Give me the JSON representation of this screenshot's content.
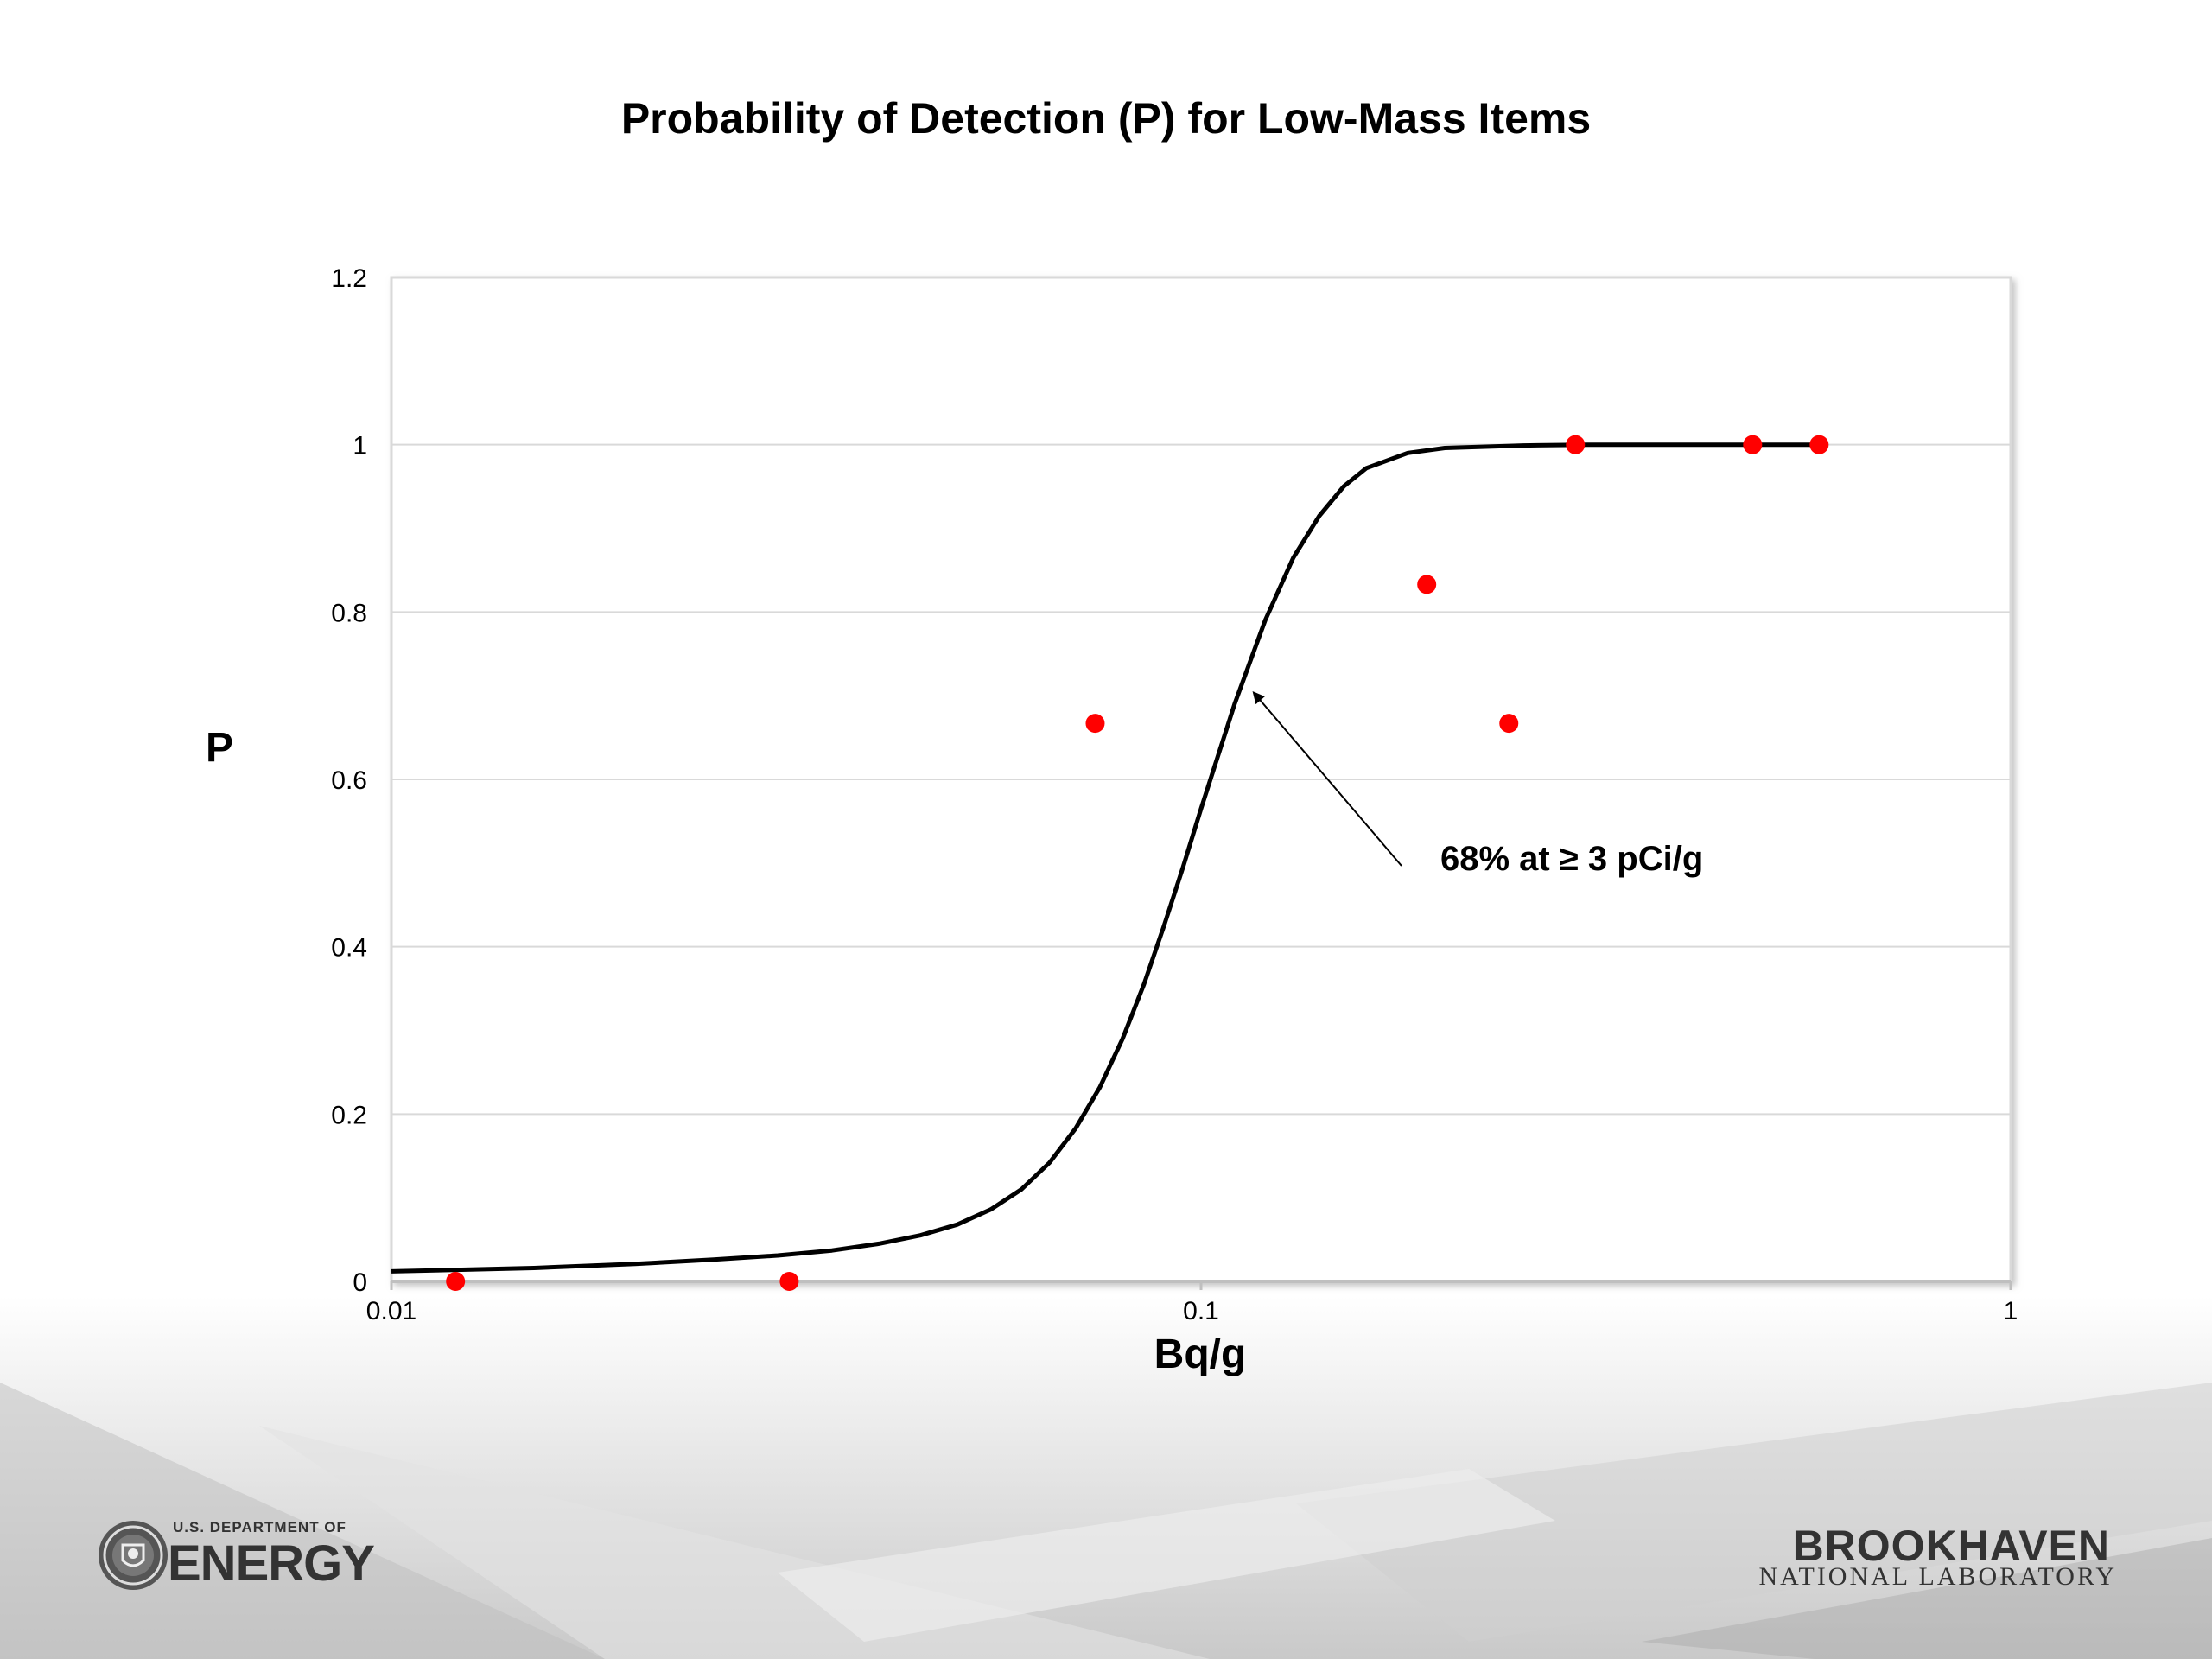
{
  "slide": {
    "logo_left": {
      "line1": "U.S. DEPARTMENT OF",
      "line2": "ENERGY"
    },
    "logo_right": {
      "line1": "BROOKHAVEN",
      "line2": "NATIONAL LABORATORY"
    }
  },
  "chart_data": {
    "type": "scatter",
    "title": "Probability of Detection (P) for Low-Mass Items",
    "xlabel": "Bq/g",
    "ylabel": "P",
    "xscale": "log",
    "xlim": [
      0.01,
      1
    ],
    "ylim": [
      0,
      1.2
    ],
    "x_ticks": [
      0.01,
      0.1,
      1
    ],
    "x_tick_labels": [
      "0.01",
      "0.1",
      "1"
    ],
    "y_ticks": [
      0,
      0.2,
      0.4,
      0.6,
      0.8,
      1,
      1.2
    ],
    "y_tick_labels": [
      "0",
      "0.2",
      "0.4",
      "0.6",
      "0.8",
      "1",
      "1.2"
    ],
    "grid": "horizontal",
    "series": [
      {
        "kind": "points",
        "color": "#ff0000",
        "points": [
          {
            "x": 0.012,
            "y": 0
          },
          {
            "x": 0.031,
            "y": 0
          },
          {
            "x": 0.074,
            "y": 0.667
          },
          {
            "x": 0.19,
            "y": 0.833
          },
          {
            "x": 0.24,
            "y": 0.667
          },
          {
            "x": 0.29,
            "y": 1
          },
          {
            "x": 0.48,
            "y": 1
          },
          {
            "x": 0.58,
            "y": 1
          }
        ]
      },
      {
        "kind": "fit-curve",
        "color": "#000000",
        "points": [
          {
            "x": 0.01,
            "y": 0.012
          },
          {
            "x": 0.015,
            "y": 0.016
          },
          {
            "x": 0.02,
            "y": 0.021
          },
          {
            "x": 0.025,
            "y": 0.026
          },
          {
            "x": 0.03,
            "y": 0.031
          },
          {
            "x": 0.035,
            "y": 0.037
          },
          {
            "x": 0.04,
            "y": 0.045
          },
          {
            "x": 0.045,
            "y": 0.055
          },
          {
            "x": 0.05,
            "y": 0.068
          },
          {
            "x": 0.055,
            "y": 0.086
          },
          {
            "x": 0.06,
            "y": 0.11
          },
          {
            "x": 0.065,
            "y": 0.142
          },
          {
            "x": 0.07,
            "y": 0.183
          },
          {
            "x": 0.075,
            "y": 0.232
          },
          {
            "x": 0.08,
            "y": 0.29
          },
          {
            "x": 0.085,
            "y": 0.355
          },
          {
            "x": 0.09,
            "y": 0.425
          },
          {
            "x": 0.095,
            "y": 0.495
          },
          {
            "x": 0.1,
            "y": 0.565
          },
          {
            "x": 0.11,
            "y": 0.69
          },
          {
            "x": 0.12,
            "y": 0.79
          },
          {
            "x": 0.13,
            "y": 0.865
          },
          {
            "x": 0.14,
            "y": 0.915
          },
          {
            "x": 0.15,
            "y": 0.95
          },
          {
            "x": 0.16,
            "y": 0.972
          },
          {
            "x": 0.18,
            "y": 0.99
          },
          {
            "x": 0.2,
            "y": 0.996
          },
          {
            "x": 0.25,
            "y": 0.999
          },
          {
            "x": 0.3,
            "y": 1
          },
          {
            "x": 0.45,
            "y": 1
          },
          {
            "x": 0.58,
            "y": 1
          }
        ]
      }
    ],
    "annotations": [
      {
        "text": "68% at ≥ 3 pCi/g",
        "arrow_to": {
          "x": 0.115,
          "y": 0.71
        }
      }
    ]
  }
}
